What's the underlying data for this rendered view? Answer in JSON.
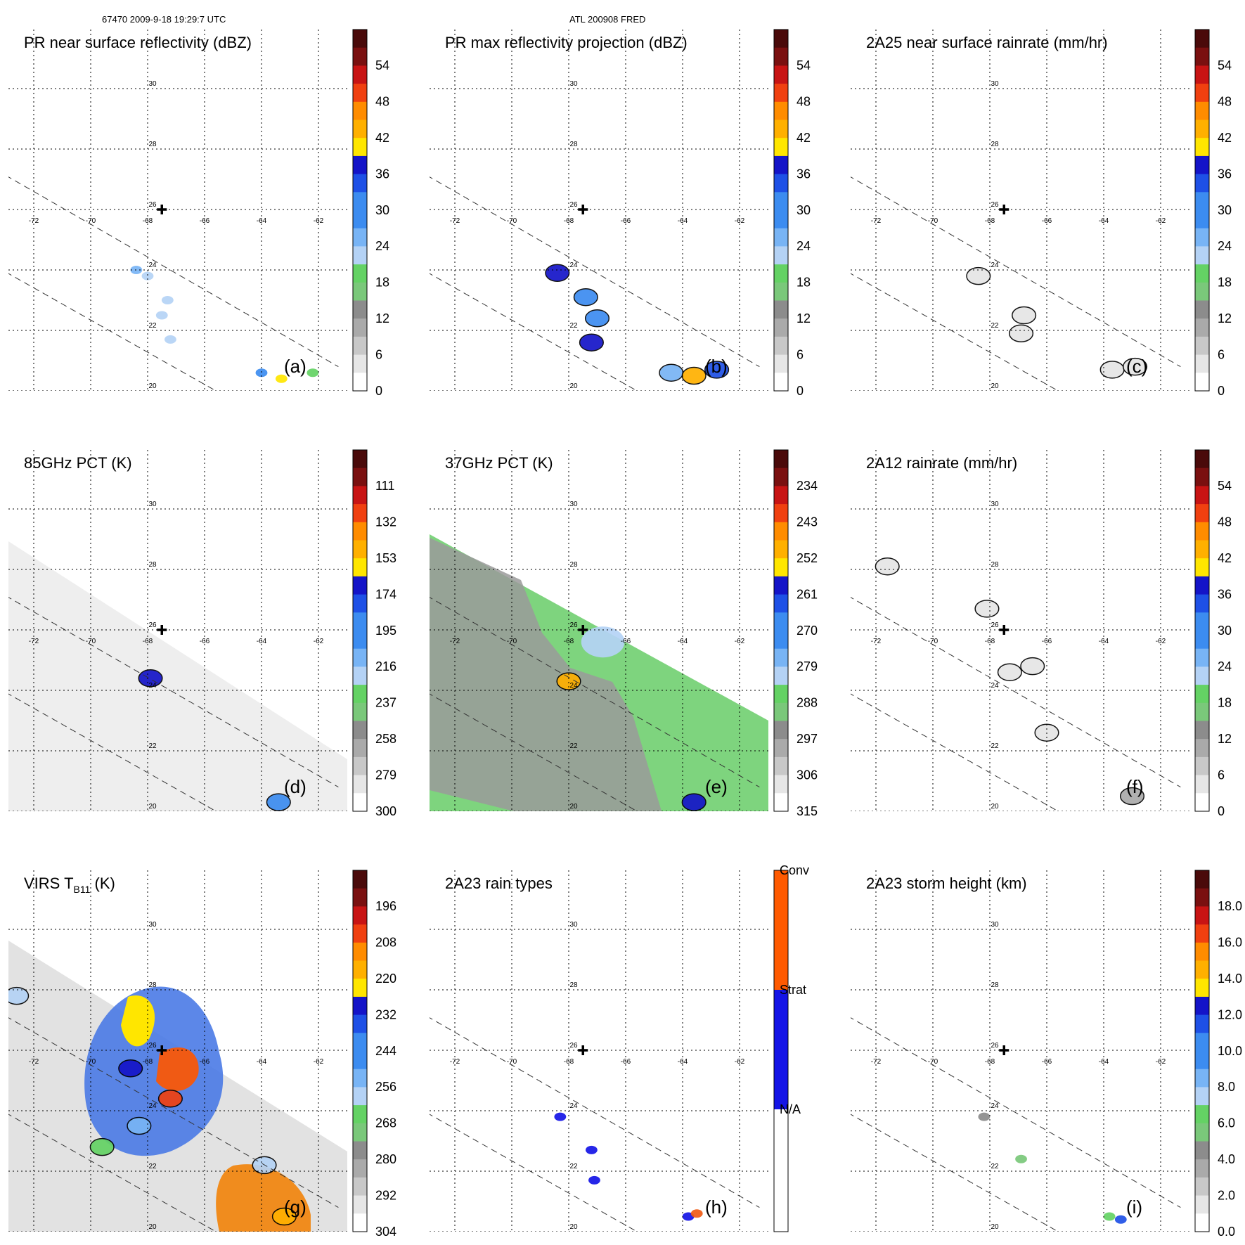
{
  "header": {
    "left": "67470 2009-9-18 19:29:7 UTC",
    "center": "ATL 200908 FRED"
  },
  "map": {
    "lon_ticks": [
      -72,
      -70,
      -68,
      -66,
      -64,
      -62
    ],
    "lat_ticks": [
      20,
      22,
      24,
      26,
      28,
      30
    ],
    "lon_tick_labels": [
      "-72",
      "-70",
      "-68",
      "-66",
      "-64",
      "-62"
    ],
    "lat_tick_labels": [
      "20",
      "22",
      "24",
      "26",
      "28",
      "30"
    ],
    "lon_range": [
      -73.3,
      -61.3
    ],
    "lat_range": [
      20.0,
      32.1
    ],
    "storm_center": {
      "lon": -67.5,
      "lat": 26.0
    },
    "swath_edges": [
      {
        "from": [
          -73.3,
          27.3
        ],
        "to": [
          -61.3,
          20.8
        ]
      },
      {
        "from": [
          -73.3,
          24.1
        ],
        "to": [
          -65.6,
          20.0
        ]
      }
    ]
  },
  "chart_data": [
    {
      "type": "heatmap",
      "panel": "a",
      "title": "PR near surface reflectivity (dBZ)",
      "panel_label": "(a)",
      "colorbar": {
        "tick_labels": [
          "54",
          "48",
          "42",
          "36",
          "30",
          "24",
          "18",
          "12",
          "6",
          "0"
        ],
        "range": [
          0,
          60
        ]
      },
      "rain_cells": [
        {
          "lon": -68.4,
          "lat": 24.0,
          "value": 26,
          "kind": "speck"
        },
        {
          "lon": -68.0,
          "lat": 23.8,
          "value": 24,
          "kind": "speck"
        },
        {
          "lon": -67.3,
          "lat": 23.0,
          "value": 24,
          "kind": "speck"
        },
        {
          "lon": -67.5,
          "lat": 22.5,
          "value": 22,
          "kind": "speck"
        },
        {
          "lon": -67.2,
          "lat": 21.7,
          "value": 24,
          "kind": "speck"
        },
        {
          "lon": -64.0,
          "lat": 20.6,
          "value": 30,
          "kind": "speck"
        },
        {
          "lon": -63.3,
          "lat": 20.4,
          "value": 40,
          "kind": "speck"
        },
        {
          "lon": -62.2,
          "lat": 20.6,
          "value": 20,
          "kind": "speck"
        }
      ]
    },
    {
      "type": "heatmap",
      "panel": "b",
      "title": "PR max reflectivity projection (dBZ)",
      "panel_label": "(b)",
      "colorbar": {
        "tick_labels": [
          "54",
          "48",
          "42",
          "36",
          "30",
          "24",
          "18",
          "12",
          "6",
          "0"
        ],
        "range": [
          0,
          60
        ]
      },
      "rain_cells": [
        {
          "lon": -68.4,
          "lat": 23.9,
          "value": 36,
          "kind": "blob"
        },
        {
          "lon": -67.4,
          "lat": 23.1,
          "value": 30,
          "kind": "blob"
        },
        {
          "lon": -67.0,
          "lat": 22.4,
          "value": 30,
          "kind": "blob"
        },
        {
          "lon": -67.2,
          "lat": 21.6,
          "value": 36,
          "kind": "blob"
        },
        {
          "lon": -64.4,
          "lat": 20.6,
          "value": 28,
          "kind": "blob"
        },
        {
          "lon": -63.6,
          "lat": 20.5,
          "value": 44,
          "kind": "blob"
        },
        {
          "lon": -62.8,
          "lat": 20.7,
          "value": 32,
          "kind": "blob"
        }
      ]
    },
    {
      "type": "heatmap",
      "panel": "c",
      "title": "2A25 near surface rainrate (mm/hr)",
      "panel_label": "(c)",
      "colorbar": {
        "tick_labels": [
          "54",
          "48",
          "42",
          "36",
          "30",
          "24",
          "18",
          "12",
          "6",
          "0"
        ],
        "range": [
          0,
          60
        ]
      },
      "rain_cells": [
        {
          "lon": -68.4,
          "lat": 23.8,
          "value": 4,
          "kind": "blob"
        },
        {
          "lon": -66.8,
          "lat": 22.5,
          "value": 4,
          "kind": "blob"
        },
        {
          "lon": -66.9,
          "lat": 21.9,
          "value": 3,
          "kind": "blob"
        },
        {
          "lon": -63.7,
          "lat": 20.7,
          "value": 4,
          "kind": "blob"
        },
        {
          "lon": -62.9,
          "lat": 20.8,
          "value": 3,
          "kind": "blob"
        }
      ]
    },
    {
      "type": "heatmap",
      "panel": "d",
      "title": "85GHz PCT (K)",
      "panel_label": "(d)",
      "colorbar": {
        "tick_labels": [
          "111",
          "132",
          "153",
          "174",
          "195",
          "216",
          "237",
          "258",
          "279",
          "300"
        ],
        "range": [
          90,
          300
        ],
        "inverted": true
      },
      "rain_cells": [
        {
          "lon": -67.9,
          "lat": 24.4,
          "value": 170,
          "kind": "blob"
        },
        {
          "lon": -63.4,
          "lat": 20.3,
          "value": 200,
          "kind": "blob"
        }
      ]
    },
    {
      "type": "heatmap",
      "panel": "e",
      "title": "37GHz PCT (K)",
      "panel_label": "(e)",
      "colorbar": {
        "tick_labels": [
          "234",
          "243",
          "252",
          "261",
          "270",
          "279",
          "288",
          "297",
          "306",
          "315"
        ],
        "range": [
          225,
          315
        ],
        "inverted": true
      },
      "rain_cells": [
        {
          "lon": -68.0,
          "lat": 24.3,
          "value": 250,
          "kind": "blob"
        },
        {
          "lon": -66.8,
          "lat": 25.6,
          "value": 282,
          "kind": "band"
        },
        {
          "lon": -63.6,
          "lat": 20.3,
          "value": 262,
          "kind": "blob"
        }
      ]
    },
    {
      "type": "heatmap",
      "panel": "f",
      "title": "2A12 rainrate (mm/hr)",
      "panel_label": "(f)",
      "colorbar": {
        "tick_labels": [
          "54",
          "48",
          "42",
          "36",
          "30",
          "24",
          "18",
          "12",
          "6",
          "0"
        ],
        "range": [
          0,
          60
        ]
      },
      "rain_cells": [
        {
          "lon": -71.6,
          "lat": 28.1,
          "value": 3,
          "kind": "blob"
        },
        {
          "lon": -68.1,
          "lat": 26.7,
          "value": 3,
          "kind": "blob"
        },
        {
          "lon": -67.3,
          "lat": 24.6,
          "value": 5,
          "kind": "blob"
        },
        {
          "lon": -66.5,
          "lat": 24.8,
          "value": 4,
          "kind": "blob"
        },
        {
          "lon": -66.0,
          "lat": 22.6,
          "value": 3,
          "kind": "blob"
        },
        {
          "lon": -63.0,
          "lat": 20.5,
          "value": 10,
          "kind": "blob"
        }
      ]
    },
    {
      "type": "heatmap",
      "panel": "g",
      "title": "VIRS T",
      "title_subscript": "B11",
      "title_suffix": " (K)",
      "panel_label": "(g)",
      "colorbar": {
        "tick_labels": [
          "196",
          "208",
          "220",
          "232",
          "244",
          "256",
          "268",
          "280",
          "292",
          "304"
        ],
        "range": [
          184,
          304
        ],
        "inverted": true
      },
      "rain_cells": [
        {
          "lon": -68.6,
          "lat": 25.4,
          "value": 230,
          "kind": "blob"
        },
        {
          "lon": -67.2,
          "lat": 24.4,
          "value": 205,
          "kind": "blob"
        },
        {
          "lon": -68.3,
          "lat": 23.5,
          "value": 250,
          "kind": "blob"
        },
        {
          "lon": -69.6,
          "lat": 22.8,
          "value": 262,
          "kind": "blob"
        },
        {
          "lon": -63.9,
          "lat": 22.2,
          "value": 255,
          "kind": "blob"
        },
        {
          "lon": -63.2,
          "lat": 20.5,
          "value": 215,
          "kind": "blob"
        },
        {
          "lon": -72.6,
          "lat": 27.8,
          "value": 258,
          "kind": "blob"
        }
      ]
    },
    {
      "type": "heatmap",
      "panel": "h",
      "title": "2A23 rain types",
      "panel_label": "(h)",
      "colorbar": {
        "tick_labels": [
          "Conv",
          "Strat",
          "N/A"
        ],
        "categorical": true
      },
      "rain_cells": [
        {
          "lon": -68.3,
          "lat": 23.8,
          "value": 1,
          "kind": "speck"
        },
        {
          "lon": -67.2,
          "lat": 22.7,
          "value": 1,
          "kind": "speck"
        },
        {
          "lon": -67.1,
          "lat": 21.7,
          "value": 1,
          "kind": "speck"
        },
        {
          "lon": -63.8,
          "lat": 20.5,
          "value": 1,
          "kind": "speck"
        },
        {
          "lon": -63.5,
          "lat": 20.6,
          "value": 2,
          "kind": "speck"
        }
      ]
    },
    {
      "type": "heatmap",
      "panel": "i",
      "title": "2A23 storm height (km)",
      "panel_label": "(i)",
      "colorbar": {
        "tick_labels": [
          "18.0",
          "16.0",
          "14.0",
          "12.0",
          "10.0",
          "8.0",
          "6.0",
          "4.0",
          "2.0",
          "0.0"
        ],
        "range": [
          0,
          20
        ]
      },
      "rain_cells": [
        {
          "lon": -68.2,
          "lat": 23.8,
          "value": 5,
          "kind": "speck"
        },
        {
          "lon": -66.9,
          "lat": 22.4,
          "value": 6,
          "kind": "speck"
        },
        {
          "lon": -63.8,
          "lat": 20.5,
          "value": 7,
          "kind": "speck"
        },
        {
          "lon": -63.4,
          "lat": 20.4,
          "value": 11,
          "kind": "speck"
        }
      ]
    }
  ]
}
